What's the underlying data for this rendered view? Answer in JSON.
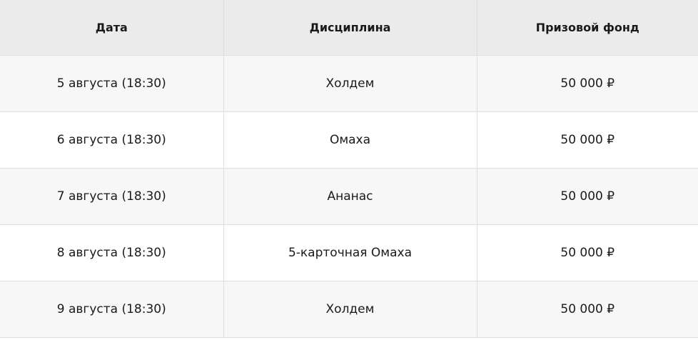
{
  "colors": {
    "header_bg": "#ebebeb",
    "row_alt_bg": "#f7f7f7",
    "border": "#dedede"
  },
  "table": {
    "headers": [
      "Дата",
      "Дисциплина",
      "Призовой фонд"
    ],
    "rows": [
      [
        "5 августа (18:30)",
        "Холдем",
        "50 000 ₽"
      ],
      [
        "6 августа (18:30)",
        "Омаха",
        "50 000 ₽"
      ],
      [
        "7 августа (18:30)",
        "Ананас",
        "50 000 ₽"
      ],
      [
        "8 августа (18:30)",
        "5-карточная Омаха",
        "50 000 ₽"
      ],
      [
        "9 августа (18:30)",
        "Холдем",
        "50 000 ₽"
      ]
    ]
  }
}
